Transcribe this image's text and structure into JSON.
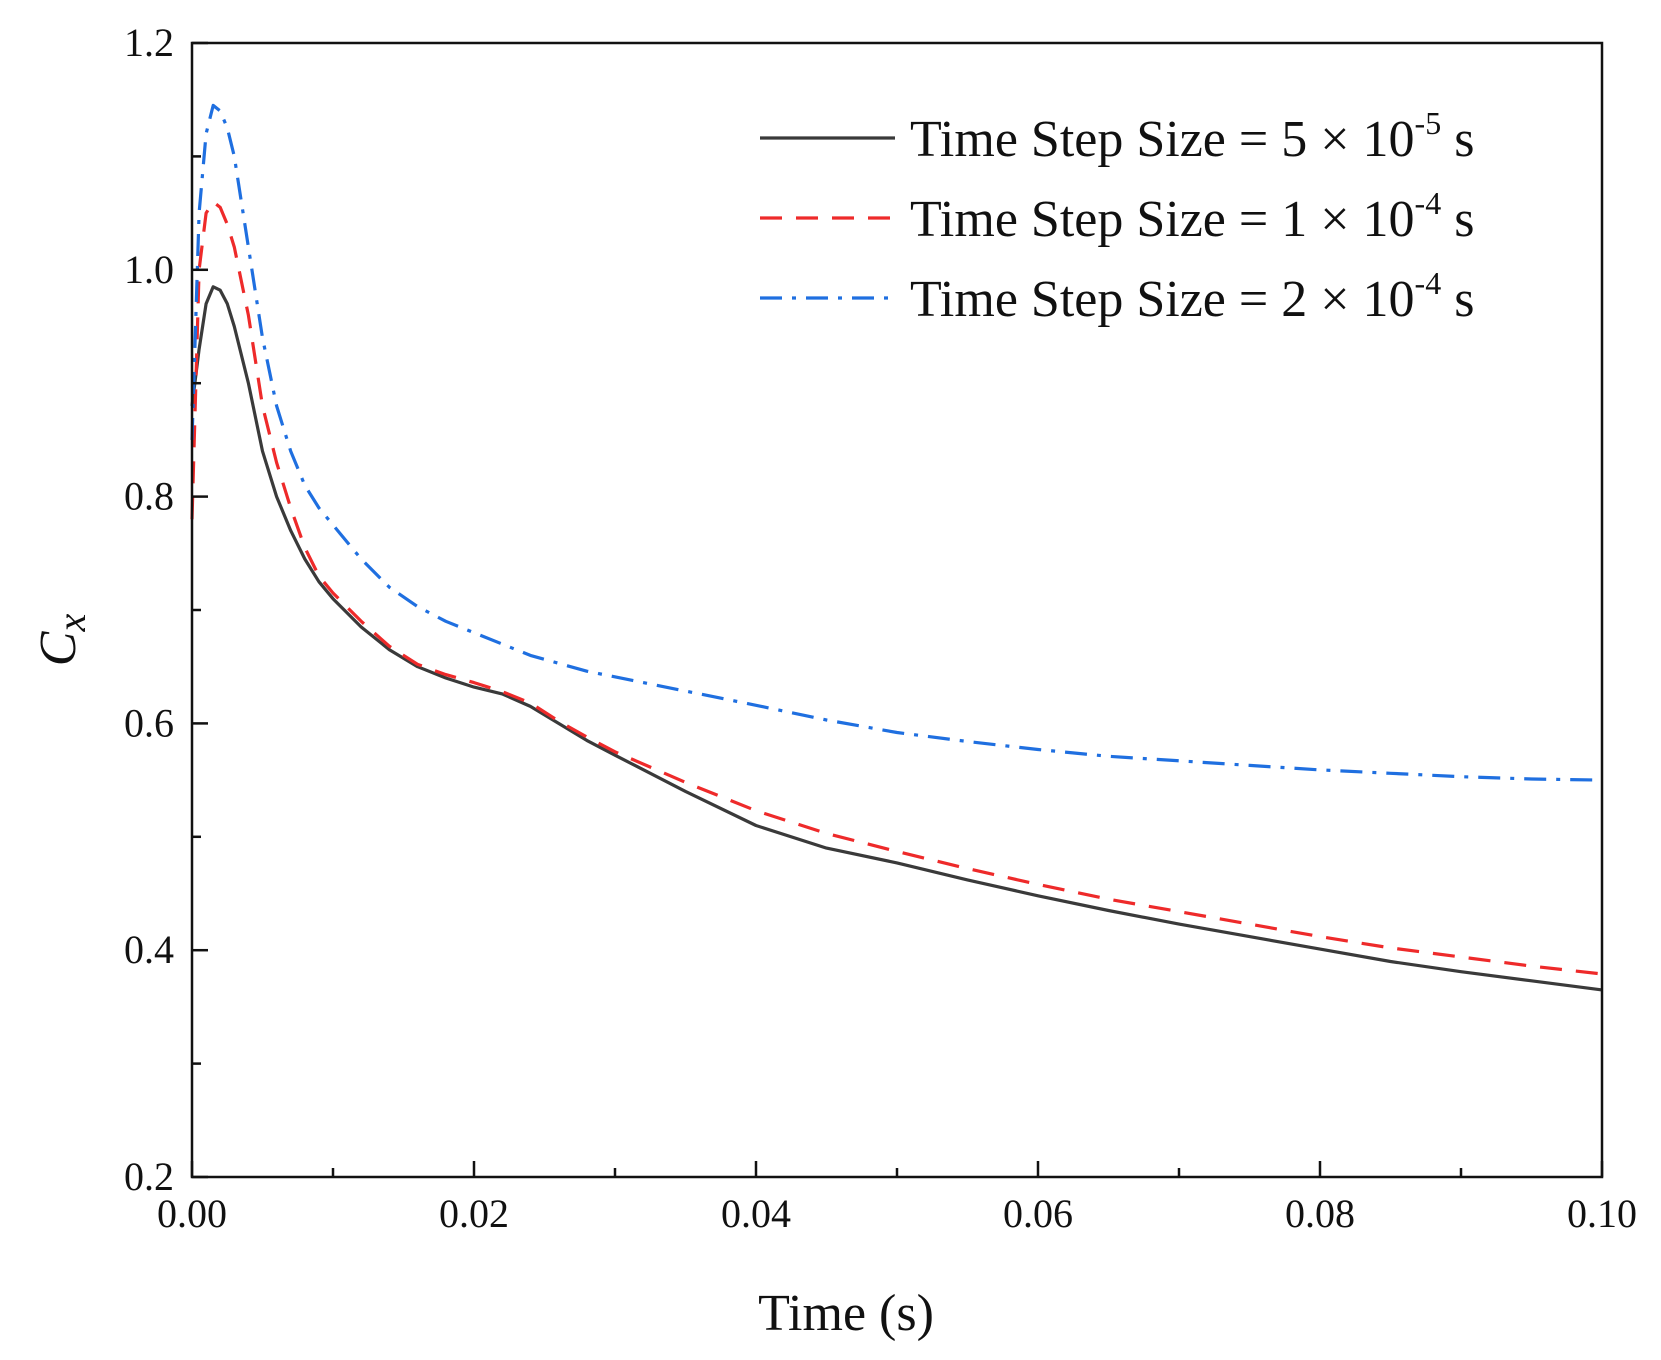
{
  "chart_data": {
    "type": "line",
    "title": "",
    "xlabel": "Time (s)",
    "ylabel": {
      "main": "C",
      "sub": "x"
    },
    "xlim": [
      0.0,
      0.1
    ],
    "ylim": [
      0.2,
      1.2
    ],
    "xticks": [
      0.0,
      0.02,
      0.04,
      0.06,
      0.08,
      0.1
    ],
    "xtick_labels": [
      "0.00",
      "0.02",
      "0.04",
      "0.06",
      "0.08",
      "0.10"
    ],
    "yticks": [
      0.2,
      0.4,
      0.6,
      0.8,
      1.0,
      1.2
    ],
    "ytick_labels": [
      "0.2",
      "0.4",
      "0.6",
      "0.8",
      "1.0",
      "1.2"
    ],
    "grid": false,
    "legend_position": "top-right",
    "series": [
      {
        "name": "Time Step Size = 5 × 10-5 s",
        "legend_prefix": "Time Step Size = 5 × 10",
        "legend_exp": "-5",
        "legend_suffix": " s",
        "color": "#3a3a3a",
        "dash": "solid",
        "x": [
          0.0,
          0.0005,
          0.001,
          0.0015,
          0.002,
          0.0025,
          0.003,
          0.004,
          0.005,
          0.006,
          0.007,
          0.008,
          0.009,
          0.01,
          0.012,
          0.014,
          0.016,
          0.018,
          0.02,
          0.022,
          0.024,
          0.026,
          0.028,
          0.03,
          0.035,
          0.04,
          0.045,
          0.05,
          0.055,
          0.06,
          0.065,
          0.07,
          0.075,
          0.08,
          0.085,
          0.09,
          0.095,
          0.1
        ],
        "y": [
          0.88,
          0.93,
          0.97,
          0.985,
          0.982,
          0.97,
          0.95,
          0.9,
          0.84,
          0.8,
          0.77,
          0.745,
          0.725,
          0.71,
          0.685,
          0.665,
          0.65,
          0.64,
          0.632,
          0.626,
          0.615,
          0.6,
          0.585,
          0.572,
          0.54,
          0.51,
          0.49,
          0.477,
          0.462,
          0.448,
          0.435,
          0.423,
          0.412,
          0.401,
          0.39,
          0.381,
          0.373,
          0.365
        ]
      },
      {
        "name": "Time Step Size = 1 × 10-4 s",
        "legend_prefix": "Time Step Size = 1 × 10",
        "legend_exp": "-4",
        "legend_suffix": " s",
        "color": "#ee2a2a",
        "dash": "22,14",
        "x": [
          0.0,
          0.0005,
          0.001,
          0.0015,
          0.002,
          0.0025,
          0.003,
          0.004,
          0.005,
          0.006,
          0.007,
          0.008,
          0.009,
          0.01,
          0.012,
          0.014,
          0.016,
          0.018,
          0.02,
          0.022,
          0.024,
          0.026,
          0.028,
          0.03,
          0.035,
          0.04,
          0.045,
          0.05,
          0.055,
          0.06,
          0.065,
          0.07,
          0.075,
          0.08,
          0.085,
          0.09,
          0.095,
          0.1
        ],
        "y": [
          0.78,
          1.0,
          1.05,
          1.06,
          1.055,
          1.04,
          1.02,
          0.96,
          0.88,
          0.83,
          0.79,
          0.755,
          0.73,
          0.715,
          0.69,
          0.668,
          0.652,
          0.643,
          0.636,
          0.628,
          0.618,
          0.602,
          0.588,
          0.575,
          0.548,
          0.523,
          0.503,
          0.487,
          0.472,
          0.458,
          0.445,
          0.434,
          0.423,
          0.412,
          0.402,
          0.394,
          0.386,
          0.379
        ]
      },
      {
        "name": "Time Step Size = 2 × 10-4 s",
        "legend_prefix": "Time Step Size = 2 × 10",
        "legend_exp": "-4",
        "legend_suffix": " s",
        "color": "#1f6fe0",
        "dash": "22,10,4,10",
        "x": [
          0.0,
          0.0005,
          0.001,
          0.0015,
          0.002,
          0.0025,
          0.003,
          0.004,
          0.005,
          0.006,
          0.007,
          0.008,
          0.009,
          0.01,
          0.012,
          0.014,
          0.016,
          0.018,
          0.02,
          0.024,
          0.028,
          0.032,
          0.036,
          0.04,
          0.045,
          0.05,
          0.055,
          0.06,
          0.065,
          0.07,
          0.075,
          0.08,
          0.085,
          0.09,
          0.095,
          0.1
        ],
        "y": [
          0.85,
          1.05,
          1.12,
          1.145,
          1.14,
          1.125,
          1.1,
          1.02,
          0.94,
          0.88,
          0.84,
          0.81,
          0.79,
          0.775,
          0.745,
          0.72,
          0.703,
          0.69,
          0.68,
          0.66,
          0.646,
          0.636,
          0.626,
          0.616,
          0.603,
          0.592,
          0.584,
          0.577,
          0.571,
          0.567,
          0.563,
          0.559,
          0.556,
          0.553,
          0.551,
          0.55
        ]
      }
    ]
  }
}
